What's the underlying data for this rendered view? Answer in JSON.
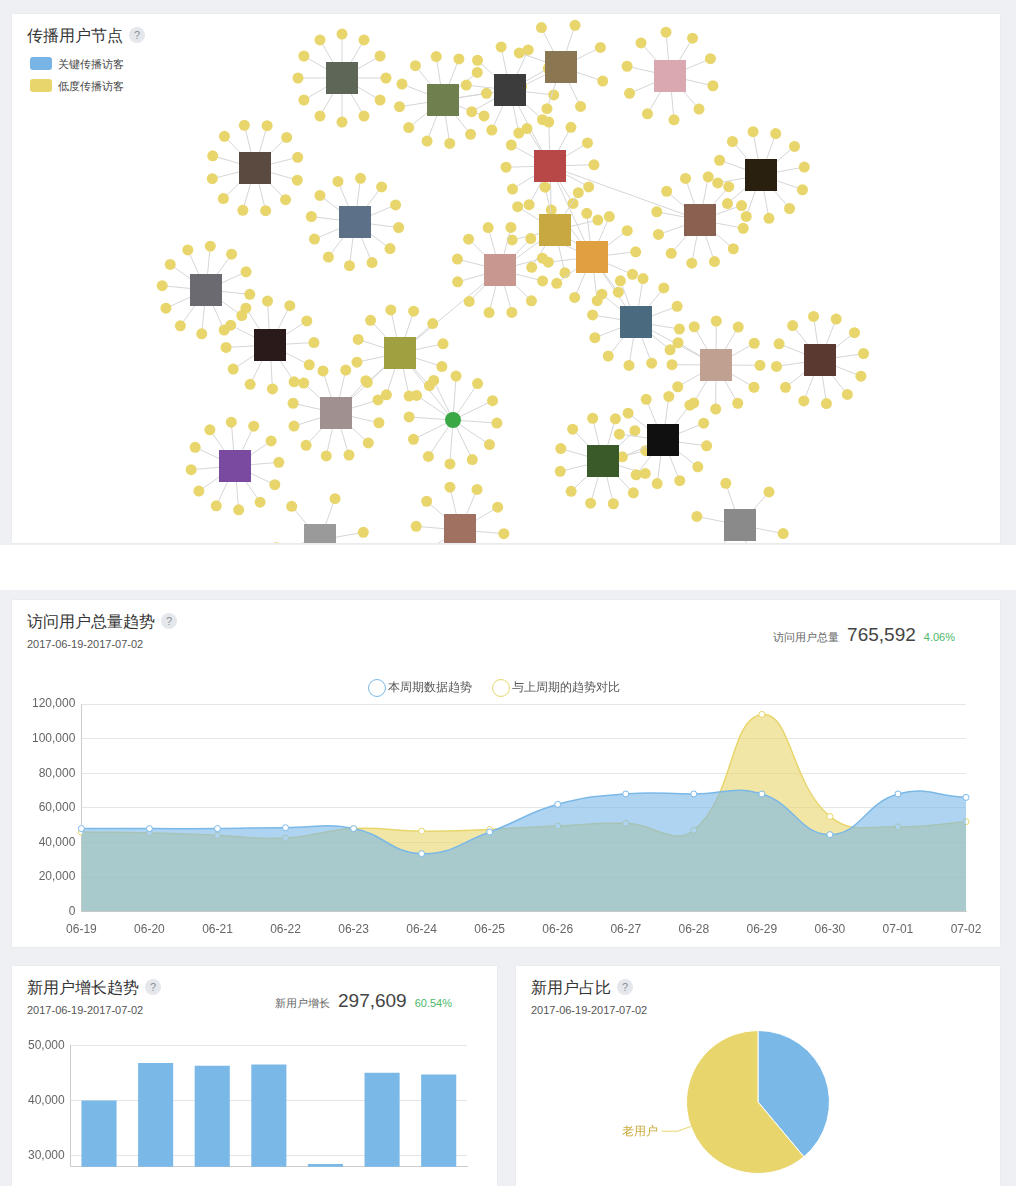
{
  "help_icon": "?",
  "network": {
    "title": "传播用户节点",
    "legend": [
      {
        "name": "关键传播访客",
        "color": "#78b4e6"
      },
      {
        "name": "低度传播访客",
        "color": "#e8d56b"
      }
    ]
  },
  "chart_data": [
    {
      "type": "line",
      "title": "访问用户总量趋势",
      "subtitle": "2017-06-19-2017-07-02",
      "annotations": [
        "访问用户总量",
        "765,592",
        "4.06%"
      ],
      "categories": [
        "06-19",
        "06-20",
        "06-21",
        "06-22",
        "06-23",
        "06-24",
        "06-25",
        "06-26",
        "06-27",
        "06-28",
        "06-29",
        "06-30",
        "07-01",
        "07-02"
      ],
      "series": [
        {
          "name": "本周期数据趋势",
          "color": "#7ab8e8",
          "values": [
            48000,
            48000,
            48000,
            48500,
            48000,
            33500,
            46000,
            62000,
            68000,
            68000,
            68000,
            44500,
            68000,
            66000
          ]
        },
        {
          "name": "与上周期的趋势对比",
          "color": "#e8d56b",
          "values": [
            46000,
            45500,
            44000,
            42500,
            48000,
            46500,
            47500,
            49500,
            51000,
            47000,
            114000,
            55000,
            49000,
            52000
          ]
        }
      ],
      "ylim": [
        0,
        120000
      ],
      "yticks": [
        0,
        {
          "value": 20000,
          "label": "20,000"
        },
        {
          "value": 40000,
          "label": "40,000"
        },
        {
          "value": 60000,
          "label": "60,000"
        },
        {
          "value": 80000,
          "label": "80,000"
        },
        {
          "value": 100000,
          "label": "100,000"
        },
        {
          "value": 120000,
          "label": "120,000"
        }
      ],
      "grid": true,
      "legend": "top",
      "marker": "circle"
    },
    {
      "type": "bar",
      "title": "新用户增长趋势",
      "subtitle": "2017-06-19-2017-07-02",
      "annotations": [
        "新用户增长",
        "297,609",
        "60.54%"
      ],
      "categories": [
        null,
        null,
        null,
        null,
        null,
        null,
        null
      ],
      "values": [
        40000,
        46800,
        46300,
        46500,
        28500,
        45000,
        44700
      ],
      "color": "#7ab8e8",
      "ylim": [
        28000,
        50000
      ],
      "yticks": [
        {
          "value": 30000,
          "label": "30,000"
        },
        {
          "value": 40000,
          "label": "40,000"
        },
        {
          "value": 50000,
          "label": "50,000"
        }
      ],
      "grid": true,
      "tick_labels": "y"
    },
    {
      "type": "pie",
      "title": "新用户占比",
      "subtitle": "2017-06-19-2017-07-02",
      "categories": [
        null,
        "老用户"
      ],
      "values": [
        38.9,
        61.1
      ],
      "colors": [
        "#7ab8e8",
        "#e8d56b"
      ]
    }
  ]
}
